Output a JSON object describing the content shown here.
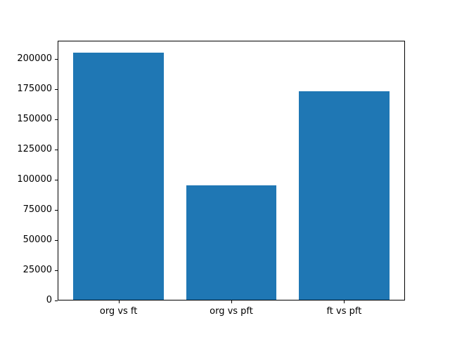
{
  "chart_data": {
    "type": "bar",
    "categories": [
      "org vs ft",
      "org vs pft",
      "ft vs pft"
    ],
    "values": [
      205000,
      95000,
      172800
    ],
    "title": "",
    "xlabel": "",
    "ylabel": "",
    "ylim": [
      0,
      215250
    ],
    "yticks": [
      0,
      25000,
      50000,
      75000,
      100000,
      125000,
      150000,
      175000,
      200000
    ],
    "bar_color": "#1f77b4",
    "grid": false,
    "legend": false
  },
  "colors": {
    "background": "#ffffff",
    "spine": "#000000",
    "tick_text": "#000000"
  }
}
